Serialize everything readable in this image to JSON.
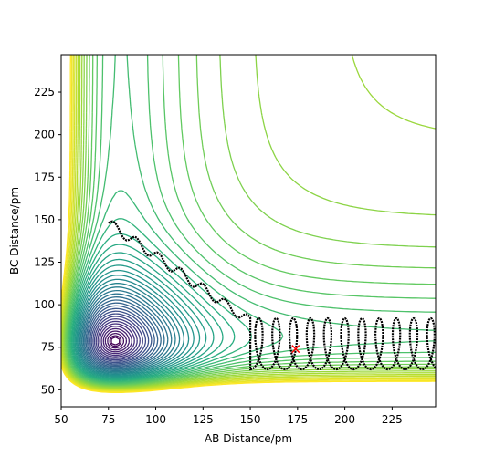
{
  "chart_data": {
    "type": "contour",
    "title": "",
    "xlabel": "AB Distance/pm",
    "ylabel": "BC Distance/pm",
    "xlim": [
      50,
      248
    ],
    "ylim": [
      40,
      247
    ],
    "xticks": [
      50,
      75,
      100,
      125,
      150,
      175,
      200,
      225
    ],
    "yticks": [
      50,
      75,
      100,
      125,
      150,
      175,
      200,
      225
    ],
    "grid": false,
    "legend": "none",
    "colormap": [
      "#440154",
      "#472d7b",
      "#3b528b",
      "#2c728e",
      "#21918c",
      "#28ae80",
      "#5ec962",
      "#addc30",
      "#fde725"
    ],
    "contour_levels": 46,
    "potential_minimum_near": [
      74,
      74
    ],
    "marker": {
      "symbol": "x",
      "color": "#ff0000",
      "x": 174,
      "y": 74
    },
    "trajectory": {
      "color": "#000000",
      "start": [
        75,
        148
      ],
      "outgoing_bc_oscillation": [
        62,
        92
      ],
      "description_points": [
        [
          75,
          148
        ],
        [
          100,
          133
        ],
        [
          125,
          115
        ],
        [
          140,
          100
        ],
        [
          150,
          88
        ],
        [
          156,
          62
        ],
        [
          160,
          90
        ],
        [
          170,
          62
        ],
        [
          178,
          91
        ],
        [
          188,
          62
        ],
        [
          196,
          91
        ],
        [
          206,
          62
        ],
        [
          215,
          91
        ],
        [
          224,
          62
        ],
        [
          233,
          91
        ],
        [
          242,
          62
        ],
        [
          248,
          88
        ]
      ]
    }
  }
}
